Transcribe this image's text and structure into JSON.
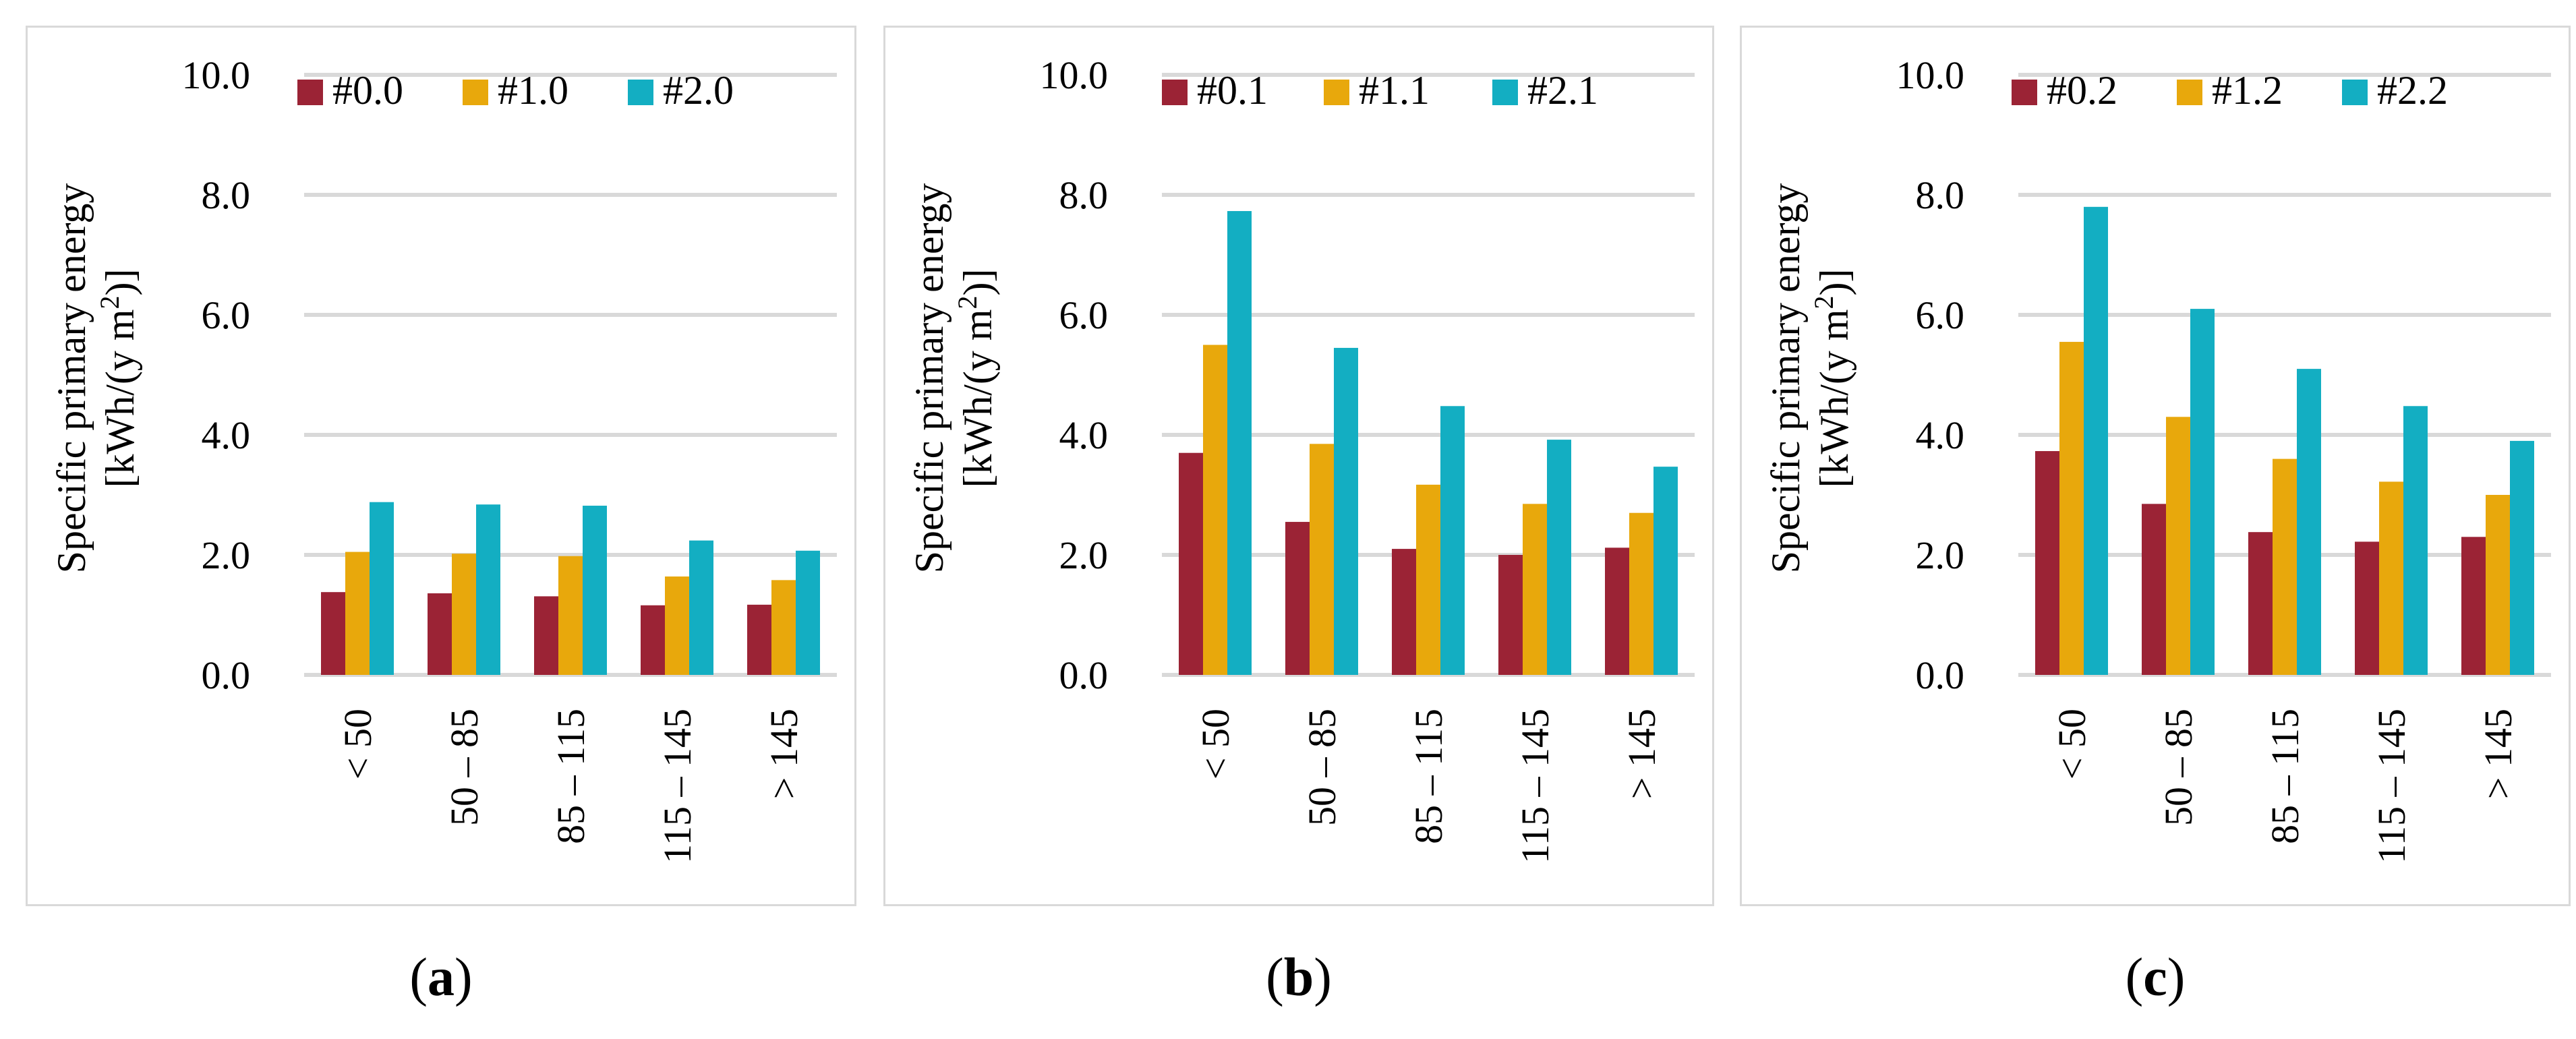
{
  "colors": {
    "s0": "#9b2335",
    "s1": "#e8a80c",
    "s2": "#13aec2",
    "grid": "#d9d9d9"
  },
  "chart_data": [
    {
      "type": "bar",
      "caption": {
        "open": "(",
        "letter": "a",
        "close": ")"
      },
      "ylabel_lines": [
        "Specific primary energy",
        "[kWh/(y m",
        "2",
        ")]"
      ],
      "ylim": [
        0,
        10
      ],
      "yticks": [
        "0.0",
        "2.0",
        "4.0",
        "6.0",
        "8.0",
        "10.0"
      ],
      "grid": true,
      "legend_position": "top",
      "categories": [
        "< 50",
        "50 – 85",
        "85 – 115",
        "115 – 145",
        "> 145"
      ],
      "series": [
        {
          "name": "#0.0",
          "values": [
            1.38,
            1.36,
            1.31,
            1.16,
            1.17
          ]
        },
        {
          "name": "#1.0",
          "values": [
            2.05,
            2.02,
            1.98,
            1.64,
            1.58
          ]
        },
        {
          "name": "#2.0",
          "values": [
            2.88,
            2.84,
            2.82,
            2.24,
            2.07
          ]
        }
      ]
    },
    {
      "type": "bar",
      "caption": {
        "open": "(",
        "letter": "b",
        "close": ")"
      },
      "ylabel_lines": [
        "Specific primary energy",
        "[kWh/(y m",
        "2",
        ")]"
      ],
      "ylim": [
        0,
        10
      ],
      "yticks": [
        "0.0",
        "2.0",
        "4.0",
        "6.0",
        "8.0",
        "10.0"
      ],
      "grid": true,
      "legend_position": "top",
      "categories": [
        "< 50",
        "50 – 85",
        "85 – 115",
        "115 – 145",
        "> 145"
      ],
      "series": [
        {
          "name": "#0.1",
          "values": [
            3.7,
            2.55,
            2.1,
            2.0,
            2.12
          ]
        },
        {
          "name": "#1.1",
          "values": [
            5.5,
            3.85,
            3.17,
            2.85,
            2.7
          ]
        },
        {
          "name": "#2.1",
          "values": [
            7.73,
            5.45,
            4.48,
            3.92,
            3.47
          ]
        }
      ]
    },
    {
      "type": "bar",
      "caption": {
        "open": "(",
        "letter": "c",
        "close": ")"
      },
      "ylabel_lines": [
        "Specific primary energy",
        "[kWh/(y m",
        "2",
        ")]"
      ],
      "ylim": [
        0,
        10
      ],
      "yticks": [
        "0.0",
        "2.0",
        "4.0",
        "6.0",
        "8.0",
        "10.0"
      ],
      "grid": true,
      "legend_position": "top",
      "categories": [
        "< 50",
        "50 – 85",
        "85 – 115",
        "115 – 145",
        "> 145"
      ],
      "series": [
        {
          "name": "#0.2",
          "values": [
            3.73,
            2.85,
            2.38,
            2.22,
            2.3
          ]
        },
        {
          "name": "#1.2",
          "values": [
            5.55,
            4.3,
            3.6,
            3.22,
            3.0
          ]
        },
        {
          "name": "#2.2",
          "values": [
            7.8,
            6.1,
            5.1,
            4.48,
            3.9
          ]
        }
      ]
    }
  ]
}
